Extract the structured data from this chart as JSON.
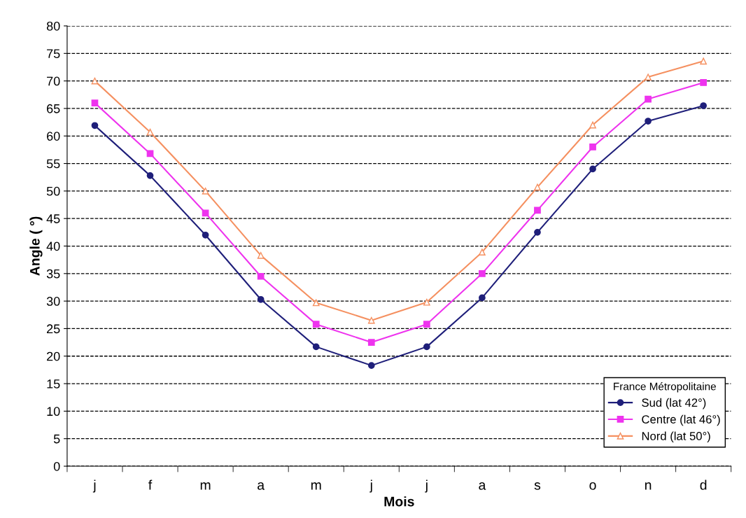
{
  "chart_data": {
    "type": "line",
    "xlabel": "Mois",
    "ylabel": "Angle ( °)",
    "categories": [
      "j",
      "f",
      "m",
      "a",
      "m",
      "j",
      "j",
      "a",
      "s",
      "o",
      "n",
      "d"
    ],
    "series": [
      {
        "name": "Sud (lat 42°)",
        "color": "#1f1f7a",
        "marker": "circle",
        "values": [
          61.9,
          52.8,
          42,
          30.3,
          21.7,
          18.3,
          21.7,
          30.6,
          42.5,
          54,
          62.7,
          65.5
        ]
      },
      {
        "name": "Centre (lat 46°)",
        "color": "#ee33ee",
        "marker": "square",
        "values": [
          66,
          56.8,
          46,
          34.5,
          25.8,
          22.5,
          25.8,
          35,
          46.5,
          58,
          66.7,
          69.7
        ]
      },
      {
        "name": "Nord (lat 50°)",
        "color": "#f59060",
        "marker": "triangle",
        "values": [
          70,
          60.7,
          50,
          38.3,
          29.7,
          26.5,
          29.8,
          38.9,
          50.7,
          62,
          70.7,
          73.6
        ]
      }
    ],
    "ylim": [
      0,
      80
    ],
    "yticks": [
      0,
      5,
      10,
      15,
      20,
      25,
      30,
      35,
      40,
      45,
      50,
      55,
      60,
      65,
      70,
      75,
      80
    ],
    "grid": "y",
    "legend": "bottom right",
    "legend_title": "France Métropolitaine",
    "line_style": "solid"
  }
}
